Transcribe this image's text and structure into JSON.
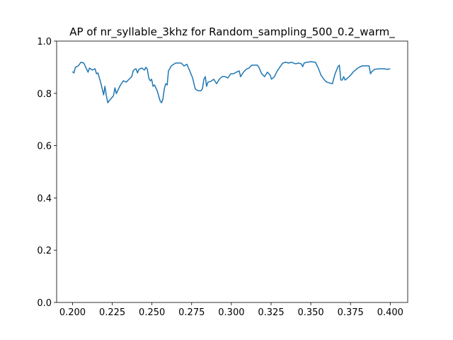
{
  "chart_data": {
    "type": "line",
    "title": "AP of nr_syllable_3khz for Random_sampling_500_0.2_warm_",
    "x": [
      0.2,
      0.2009,
      0.2018,
      0.2036,
      0.2053,
      0.2071,
      0.2089,
      0.2098,
      0.2107,
      0.2124,
      0.2142,
      0.2151,
      0.216,
      0.2169,
      0.2178,
      0.2196,
      0.2204,
      0.2213,
      0.2222,
      0.2231,
      0.224,
      0.2258,
      0.2267,
      0.2276,
      0.2284,
      0.2302,
      0.232,
      0.2338,
      0.2356,
      0.2373,
      0.2382,
      0.2391,
      0.24,
      0.2409,
      0.2418,
      0.2436,
      0.2453,
      0.2462,
      0.2471,
      0.248,
      0.2489,
      0.2498,
      0.2507,
      0.2516,
      0.2533,
      0.2551,
      0.256,
      0.2569,
      0.2578,
      0.2587,
      0.2596,
      0.2604,
      0.2622,
      0.2649,
      0.2684,
      0.2702,
      0.272,
      0.2738,
      0.2756,
      0.2773,
      0.2791,
      0.2809,
      0.2818,
      0.2827,
      0.2836,
      0.2844,
      0.2853,
      0.2871,
      0.2889,
      0.2907,
      0.2924,
      0.2942,
      0.296,
      0.2978,
      0.2996,
      0.3013,
      0.3031,
      0.3049,
      0.3058,
      0.3076,
      0.3093,
      0.3111,
      0.3129,
      0.3164,
      0.3173,
      0.3191,
      0.3209,
      0.3227,
      0.3244,
      0.3253,
      0.3271,
      0.3289,
      0.3307,
      0.3324,
      0.3342,
      0.336,
      0.3378,
      0.3404,
      0.3422,
      0.344,
      0.3449,
      0.3458,
      0.3476,
      0.3502,
      0.3529,
      0.3547,
      0.3564,
      0.3582,
      0.36,
      0.3618,
      0.3636,
      0.3653,
      0.3671,
      0.368,
      0.3689,
      0.3698,
      0.3707,
      0.3716,
      0.3733,
      0.3751,
      0.3769,
      0.3796,
      0.3822,
      0.3849,
      0.3867,
      0.3876,
      0.3884,
      0.3902,
      0.3929,
      0.3964,
      0.3982,
      0.4
    ],
    "series": [
      {
        "color": "#1f77b4",
        "values": [
          0.883,
          0.878,
          0.9,
          0.905,
          0.919,
          0.916,
          0.892,
          0.881,
          0.897,
          0.889,
          0.894,
          0.875,
          0.878,
          0.859,
          0.84,
          0.794,
          0.827,
          0.791,
          0.764,
          0.772,
          0.778,
          0.791,
          0.821,
          0.799,
          0.81,
          0.832,
          0.848,
          0.843,
          0.854,
          0.864,
          0.886,
          0.892,
          0.894,
          0.878,
          0.892,
          0.897,
          0.889,
          0.9,
          0.892,
          0.859,
          0.848,
          0.854,
          0.827,
          0.832,
          0.81,
          0.772,
          0.764,
          0.778,
          0.818,
          0.837,
          0.832,
          0.886,
          0.905,
          0.916,
          0.916,
          0.905,
          0.911,
          0.886,
          0.859,
          0.816,
          0.81,
          0.81,
          0.818,
          0.854,
          0.864,
          0.827,
          0.843,
          0.846,
          0.854,
          0.837,
          0.854,
          0.864,
          0.864,
          0.859,
          0.875,
          0.875,
          0.881,
          0.886,
          0.864,
          0.881,
          0.892,
          0.897,
          0.908,
          0.908,
          0.9,
          0.875,
          0.864,
          0.881,
          0.87,
          0.854,
          0.864,
          0.886,
          0.902,
          0.916,
          0.919,
          0.916,
          0.919,
          0.913,
          0.916,
          0.913,
          0.902,
          0.916,
          0.919,
          0.921,
          0.919,
          0.897,
          0.87,
          0.854,
          0.843,
          0.84,
          0.837,
          0.875,
          0.902,
          0.908,
          0.851,
          0.851,
          0.864,
          0.851,
          0.859,
          0.87,
          0.883,
          0.897,
          0.905,
          0.905,
          0.905,
          0.875,
          0.883,
          0.892,
          0.894,
          0.894,
          0.892,
          0.894
        ]
      }
    ],
    "xlim": [
      0.19,
      0.411
    ],
    "ylim": [
      0,
      1
    ],
    "xticks": [
      {
        "value": 0.2,
        "label": "0.200"
      },
      {
        "value": 0.225,
        "label": "0.225"
      },
      {
        "value": 0.25,
        "label": "0.250"
      },
      {
        "value": 0.275,
        "label": "0.275"
      },
      {
        "value": 0.3,
        "label": "0.300"
      },
      {
        "value": 0.325,
        "label": "0.325"
      },
      {
        "value": 0.35,
        "label": "0.350"
      },
      {
        "value": 0.375,
        "label": "0.375"
      },
      {
        "value": 0.4,
        "label": "0.400"
      }
    ],
    "yticks": [
      {
        "value": 0,
        "label": "0.0"
      },
      {
        "value": 0.2,
        "label": "0.2"
      },
      {
        "value": 0.4,
        "label": "0.4"
      },
      {
        "value": 0.6,
        "label": "0.6"
      },
      {
        "value": 0.8,
        "label": "0.8"
      },
      {
        "value": 1,
        "label": "1.0"
      }
    ]
  }
}
